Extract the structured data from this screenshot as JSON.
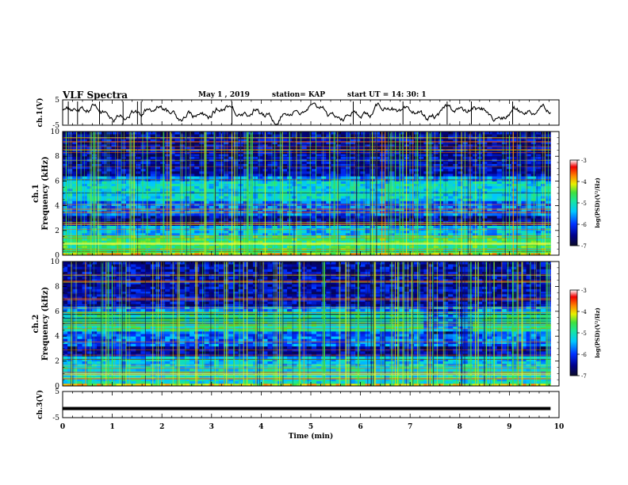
{
  "header": {
    "title": "VLF Spectra",
    "date": "May 1 , 2019",
    "station": "station= KAP",
    "start": "start UT = 14: 30: 1"
  },
  "colorbar": {
    "label": "log(PSD)(V²/Hz)",
    "ticks": [
      "-3",
      "-4",
      "-5",
      "-6",
      "-7"
    ],
    "range": [
      -7,
      -3
    ]
  },
  "chart_data": [
    {
      "type": "line",
      "panel": "ch1-waveform",
      "ylabel": "ch.1(V)",
      "ylim": [
        -5,
        5
      ],
      "ytick_labels": [
        "5",
        "-5"
      ],
      "xlim": [
        0,
        10
      ],
      "x_end": 9.83
    },
    {
      "type": "heatmap",
      "panel": "ch1-spectrogram",
      "ylabel": "ch.1 Frequency (kHz)",
      "ylim": [
        0,
        10
      ],
      "ytick_labels": [
        "0",
        "2",
        "4",
        "6",
        "8",
        "10"
      ],
      "xlim": [
        0,
        10
      ],
      "x_end": 9.83,
      "colorbar_label": "log(PSD)(V²/Hz)",
      "colorbar_range": [
        -7,
        -3
      ]
    },
    {
      "type": "heatmap",
      "panel": "ch2-spectrogram",
      "ylabel": "ch.2 Frequency (kHz)",
      "ylim": [
        0,
        10
      ],
      "ytick_labels": [
        "0",
        "2",
        "4",
        "6",
        "8",
        "10"
      ],
      "xlim": [
        0,
        10
      ],
      "x_end": 9.83,
      "colorbar_label": "log(PSD)(V²/Hz)",
      "colorbar_range": [
        -7,
        -3
      ]
    },
    {
      "type": "line",
      "panel": "ch3-waveform",
      "ylabel": "ch.3(V)",
      "ylim": [
        -5,
        5
      ],
      "ytick_labels": [
        "5",
        "-5"
      ],
      "xlim": [
        0,
        10
      ],
      "x_end": 9.83,
      "xlabel": "Time (min)",
      "xtick_labels": [
        "0",
        "1",
        "2",
        "3",
        "4",
        "5",
        "6",
        "7",
        "8",
        "9",
        "10"
      ],
      "series": [
        {
          "x": [
            0,
            9.83
          ],
          "y": [
            -1.5,
            -1.5
          ]
        }
      ]
    }
  ]
}
